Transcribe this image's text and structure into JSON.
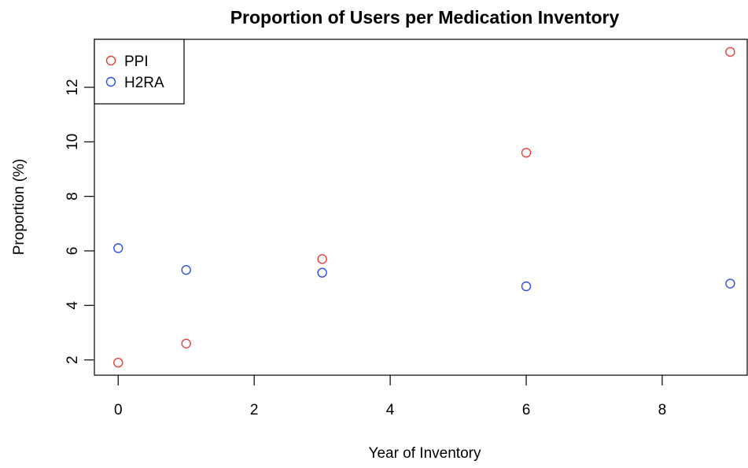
{
  "chart_data": {
    "type": "scatter",
    "title": "Proportion of Users per Medication Inventory",
    "x_label": "Year of Inventory",
    "y_label": "Proportion (%)",
    "x": [
      0,
      1,
      3,
      6,
      9
    ],
    "series": [
      {
        "name": "PPI",
        "color": "#e5403a",
        "values": [
          1.9,
          2.6,
          5.7,
          9.6,
          13.3
        ]
      },
      {
        "name": "H2RA",
        "color": "#2f4fe8",
        "values": [
          6.1,
          5.3,
          5.2,
          4.7,
          4.8
        ]
      }
    ],
    "xlim": [
      -0.35,
      9.25
    ],
    "xticks": [
      0,
      2,
      4,
      6,
      8
    ],
    "ylim": [
      1.44,
      13.76
    ],
    "yticks": [
      2,
      4,
      6,
      8,
      10,
      12
    ],
    "legend": "top-left"
  }
}
